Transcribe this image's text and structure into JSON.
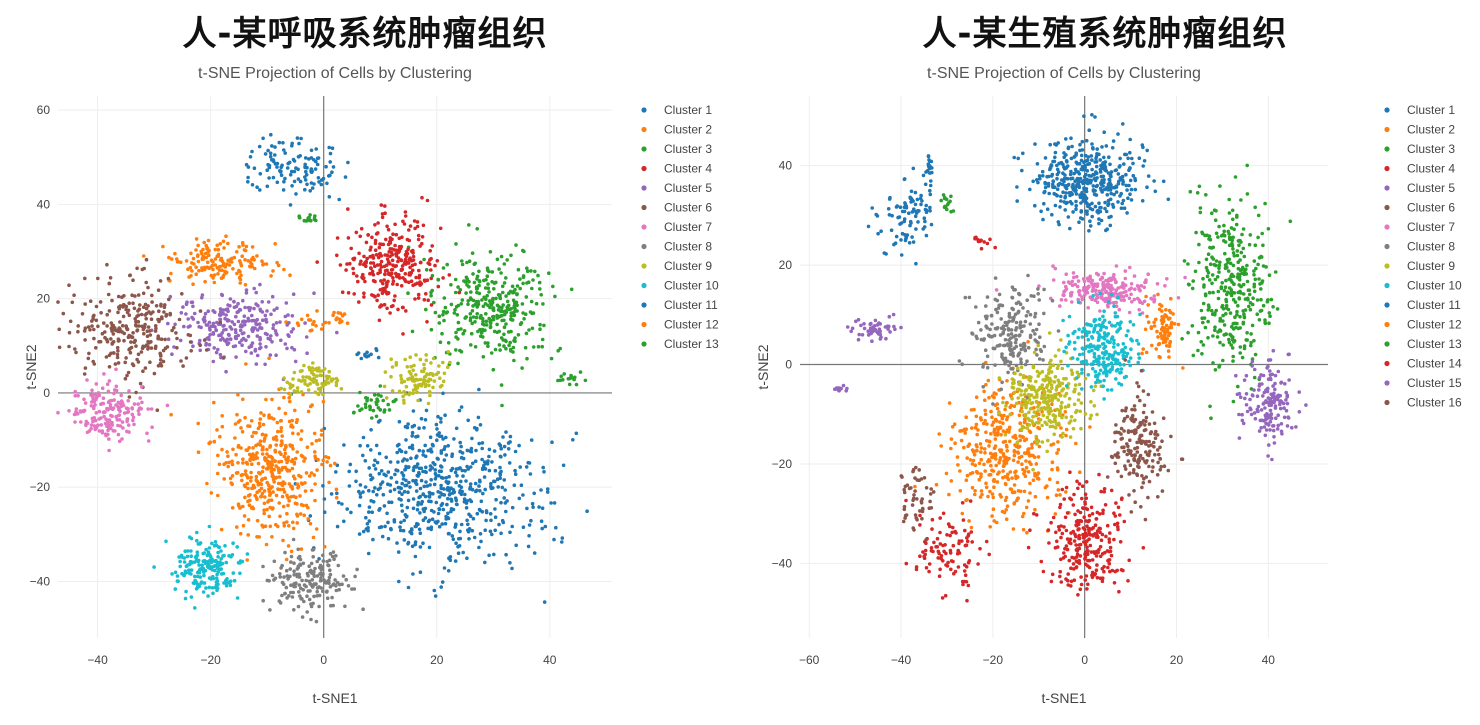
{
  "panels": [
    {
      "heading": "人-某呼吸系统肿瘤组织",
      "chart_data": {
        "type": "scatter",
        "title": "t-SNE Projection of Cells by Clustering",
        "xlabel": "t-SNE1",
        "ylabel": "t-SNE2",
        "xlim": [
          -47,
          51
        ],
        "ylim": [
          -52,
          63
        ],
        "xticks": [
          -40,
          -20,
          0,
          20,
          40
        ],
        "yticks": [
          -40,
          -20,
          0,
          20,
          40,
          60
        ],
        "grid": true,
        "legend_position": "right",
        "series": [
          {
            "name": "Cluster 1",
            "color": "#1f77b4",
            "blobs": [
              [
                -5,
                48,
                7,
                5,
                120
              ],
              [
                21,
                -20,
                15,
                13,
                620
              ]
            ]
          },
          {
            "name": "Cluster 2",
            "color": "#ff7f0e",
            "blobs": [
              [
                -19,
                28,
                8,
                4,
                150
              ],
              [
                -9,
                -16,
                8,
                12,
                420
              ],
              [
                -1,
                15,
                3,
                2,
                20
              ]
            ]
          },
          {
            "name": "Cluster 3",
            "color": "#2ca02c",
            "blobs": [
              [
                30,
                18,
                9,
                10,
                340
              ],
              [
                -3,
                37,
                2,
                1,
                15
              ],
              [
                9,
                -2,
                4,
                3,
                35
              ]
            ]
          },
          {
            "name": "Cluster 4",
            "color": "#d62728",
            "blobs": [
              [
                12,
                27,
                7,
                8,
                300
              ]
            ]
          },
          {
            "name": "Cluster 5",
            "color": "#9467bd",
            "blobs": [
              [
                -15,
                14,
                9,
                6,
                260
              ]
            ]
          },
          {
            "name": "Cluster 6",
            "color": "#8c564b",
            "blobs": [
              [
                -34,
                14,
                9,
                9,
                280
              ]
            ]
          },
          {
            "name": "Cluster 7",
            "color": "#e377c2",
            "blobs": [
              [
                -38,
                -4,
                6,
                5,
                180
              ]
            ]
          },
          {
            "name": "Cluster 8",
            "color": "#7f7f7f",
            "blobs": [
              [
                -2,
                -40,
                6,
                5,
                180
              ]
            ]
          },
          {
            "name": "Cluster 9",
            "color": "#bcbd22",
            "blobs": [
              [
                17,
                3,
                4,
                4,
                100
              ],
              [
                -2,
                3,
                4,
                3,
                80
              ]
            ]
          },
          {
            "name": "Cluster 10",
            "color": "#17becf",
            "blobs": [
              [
                -21,
                -37,
                5,
                5,
                190
              ]
            ]
          },
          {
            "name": "Cluster 11",
            "color": "#1f77b4",
            "blobs": [
              [
                7,
                8,
                2,
                1,
                12
              ]
            ]
          },
          {
            "name": "Cluster 12",
            "color": "#ff7f0e",
            "blobs": [
              [
                3,
                16,
                1,
                1,
                10
              ]
            ]
          },
          {
            "name": "Cluster 13",
            "color": "#2ca02c",
            "blobs": [
              [
                43,
                3,
                2,
                1,
                15
              ]
            ]
          }
        ]
      }
    },
    {
      "heading": "人-某生殖系统肿瘤组织",
      "chart_data": {
        "type": "scatter",
        "title": "t-SNE Projection of Cells by Clustering",
        "xlabel": "t-SNE1",
        "ylabel": "t-SNE2",
        "xlim": [
          -62,
          53
        ],
        "ylim": [
          -55,
          54
        ],
        "xticks": [
          -60,
          -40,
          -20,
          0,
          20,
          40
        ],
        "yticks": [
          -40,
          -20,
          0,
          20,
          40
        ],
        "grid": true,
        "legend_position": "right",
        "series": [
          {
            "name": "Cluster 1",
            "color": "#1f77b4",
            "blobs": [
              [
                0,
                37,
                10,
                7,
                420
              ],
              [
                -38,
                30,
                5,
                6,
                90
              ]
            ]
          },
          {
            "name": "Cluster 2",
            "color": "#ff7f0e",
            "blobs": [
              [
                -17,
                -17,
                10,
                12,
                400
              ]
            ]
          },
          {
            "name": "Cluster 3",
            "color": "#2ca02c",
            "blobs": [
              [
                32,
                15,
                7,
                14,
                350
              ]
            ]
          },
          {
            "name": "Cluster 4",
            "color": "#d62728",
            "blobs": [
              [
                0,
                -35,
                7,
                10,
                260
              ],
              [
                -30,
                -38,
                6,
                7,
                100
              ]
            ]
          },
          {
            "name": "Cluster 5",
            "color": "#9467bd",
            "blobs": [
              [
                40,
                -8,
                5,
                7,
                160
              ],
              [
                -45,
                7,
                5,
                2,
                50
              ]
            ]
          },
          {
            "name": "Cluster 6",
            "color": "#8c564b",
            "blobs": [
              [
                -37,
                -27,
                3,
                6,
                50
              ]
            ]
          },
          {
            "name": "Cluster 7",
            "color": "#e377c2",
            "blobs": [
              [
                4,
                15,
                11,
                3,
                220
              ]
            ]
          },
          {
            "name": "Cluster 8",
            "color": "#7f7f7f",
            "blobs": [
              [
                -16,
                6,
                7,
                8,
                200
              ]
            ]
          },
          {
            "name": "Cluster 9",
            "color": "#bcbd22",
            "blobs": [
              [
                -8,
                -7,
                7,
                7,
                280
              ]
            ]
          },
          {
            "name": "Cluster 10",
            "color": "#17becf",
            "blobs": [
              [
                4,
                3,
                6,
                7,
                240
              ]
            ]
          },
          {
            "name": "Cluster 11",
            "color": "#1f77b4",
            "blobs": [
              [
                -34,
                39,
                1,
                3,
                20
              ]
            ]
          },
          {
            "name": "Cluster 12",
            "color": "#ff7f0e",
            "blobs": [
              [
                17,
                7,
                3,
                5,
                80
              ]
            ]
          },
          {
            "name": "Cluster 13",
            "color": "#2ca02c",
            "blobs": [
              [
                -30,
                33,
                1,
                2,
                15
              ]
            ]
          },
          {
            "name": "Cluster 14",
            "color": "#d62728",
            "blobs": [
              [
                -22,
                25,
                2,
                1,
                12
              ]
            ]
          },
          {
            "name": "Cluster 15",
            "color": "#9467bd",
            "blobs": [
              [
                -53,
                -5,
                1,
                0.5,
                15
              ]
            ]
          },
          {
            "name": "Cluster 16",
            "color": "#8c564b",
            "blobs": [
              [
                12,
                -16,
                5,
                8,
                180
              ]
            ]
          }
        ]
      }
    }
  ]
}
